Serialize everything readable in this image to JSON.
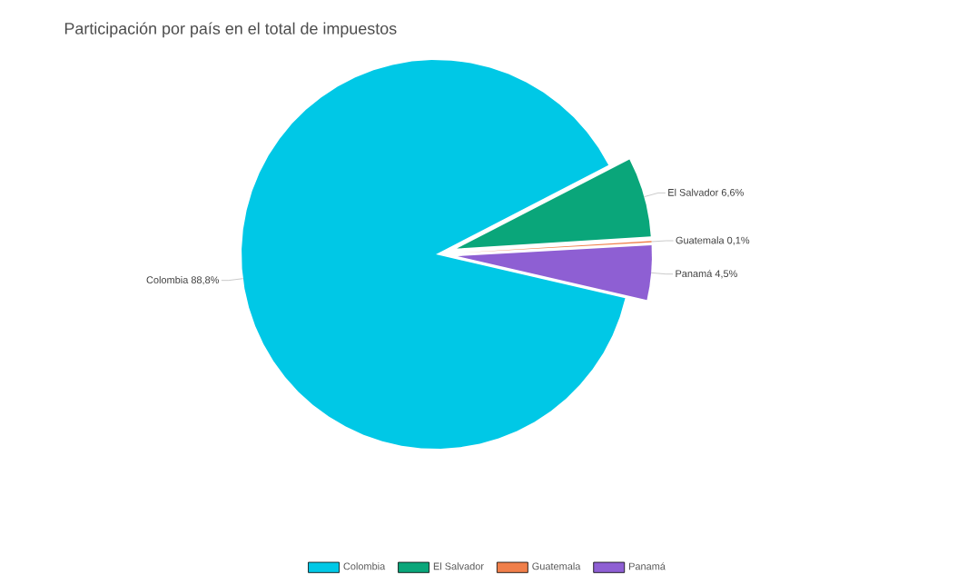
{
  "chart_data": {
    "type": "pie",
    "title": "Participación  por país en el total de impuestos",
    "categories": [
      "Colombia",
      "El Salvador",
      "Guatemala",
      "Panamá"
    ],
    "values": [
      88.8,
      6.6,
      0.1,
      4.5
    ],
    "value_labels": [
      "88,8%",
      "6,6%",
      "0,1%",
      "4,5%"
    ],
    "colors": [
      "#00c8e6",
      "#0aa67a",
      "#f07f4a",
      "#8e5fd3"
    ],
    "legend": "bottom"
  }
}
